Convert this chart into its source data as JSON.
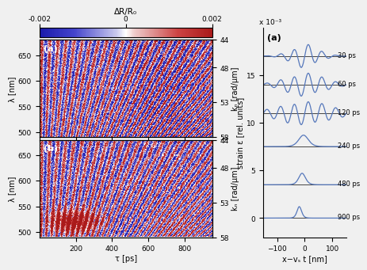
{
  "colorbar_title": "ΔR/R₀",
  "colorbar_vmin": -0.002,
  "colorbar_vmax": 0.002,
  "tau_range": [
    0,
    950
  ],
  "lambda_range": [
    490,
    680
  ],
  "kp_ticks": [
    44,
    48,
    53,
    58
  ],
  "lambda_ticks": [
    500,
    550,
    600,
    650
  ],
  "tau_ticks": [
    200,
    400,
    600,
    800
  ],
  "xlabel_left": "τ [ps]",
  "ylabel_left": "λ [nm]",
  "ylabel_right_kp": "kₙ [rad/μm]",
  "ylabel_right_strain": "strain ε [rel. units]",
  "xlabel_right": "x−vₛ t [nm]",
  "right_x_ticks": [
    -100,
    0,
    100
  ],
  "right_y_ticks": [
    0,
    5,
    10,
    15
  ],
  "right_y_label": "x 10⁻³",
  "right_times": [
    "30 ps",
    "60 ps",
    "120 ps",
    "240 ps",
    "480 ps",
    "900 ps"
  ],
  "right_offsets": [
    17,
    14,
    11,
    7.5,
    3.5,
    0
  ],
  "panel_a_label": "(a)",
  "panel_b_label": "(b)",
  "panel_right_label": "(a)",
  "fig_bg": "#e8e8e8"
}
